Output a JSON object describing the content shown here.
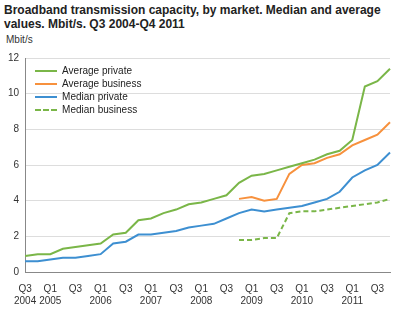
{
  "chart_data": {
    "type": "line",
    "title": "Broadband transmission capacity, by market. Median and average values. Mbit/s. Q3 2004-Q4 2011",
    "ylabel": "Mbit/s",
    "categories": [
      "Q3 2004",
      null,
      "Q1 2005",
      null,
      "Q3",
      null,
      "Q1 2006",
      null,
      "Q3",
      null,
      "Q1 2007",
      null,
      "Q3",
      null,
      "Q1 2008",
      null,
      "Q3",
      null,
      "Q1 2009",
      null,
      "Q3",
      null,
      "Q1 2010",
      null,
      "Q3",
      null,
      "Q1 2011",
      null,
      "Q3",
      null
    ],
    "series": [
      {
        "name": "Average private",
        "color": "#7ab648",
        "line_style": "solid",
        "values": [
          0.9,
          1.0,
          1.0,
          1.3,
          1.4,
          1.5,
          1.6,
          2.1,
          2.2,
          2.9,
          3.0,
          3.3,
          3.5,
          3.8,
          3.9,
          4.1,
          4.3,
          5.0,
          5.4,
          5.5,
          5.7,
          5.9,
          6.1,
          6.3,
          6.6,
          6.8,
          7.4,
          10.4,
          10.7,
          11.4
        ]
      },
      {
        "name": "Average business",
        "color": "#f7913d",
        "line_style": "solid",
        "values": [
          null,
          null,
          null,
          null,
          null,
          null,
          null,
          null,
          null,
          null,
          null,
          null,
          null,
          null,
          null,
          null,
          null,
          4.1,
          4.2,
          4.0,
          4.1,
          5.5,
          6.0,
          6.1,
          6.4,
          6.6,
          7.1,
          7.4,
          7.7,
          8.4
        ]
      },
      {
        "name": "Median private",
        "color": "#3d8fd1",
        "line_style": "solid",
        "values": [
          0.6,
          0.6,
          0.7,
          0.8,
          0.8,
          0.9,
          1.0,
          1.6,
          1.7,
          2.1,
          2.1,
          2.2,
          2.3,
          2.5,
          2.6,
          2.7,
          3.0,
          3.3,
          3.5,
          3.4,
          3.5,
          3.6,
          3.7,
          3.9,
          4.1,
          4.5,
          5.3,
          5.7,
          6.0,
          6.7
        ]
      },
      {
        "name": "Median business",
        "color": "#7ab648",
        "line_style": "dashed",
        "values": [
          null,
          null,
          null,
          null,
          null,
          null,
          null,
          null,
          null,
          null,
          null,
          null,
          null,
          null,
          null,
          null,
          null,
          1.8,
          1.8,
          1.9,
          1.9,
          3.3,
          3.4,
          3.4,
          3.5,
          3.6,
          3.7,
          3.8,
          3.9,
          4.1
        ]
      }
    ],
    "ylim": [
      0,
      12
    ],
    "yticks": [
      0,
      2,
      4,
      6,
      8,
      10,
      12
    ],
    "grid": true,
    "legend": "upper left"
  }
}
